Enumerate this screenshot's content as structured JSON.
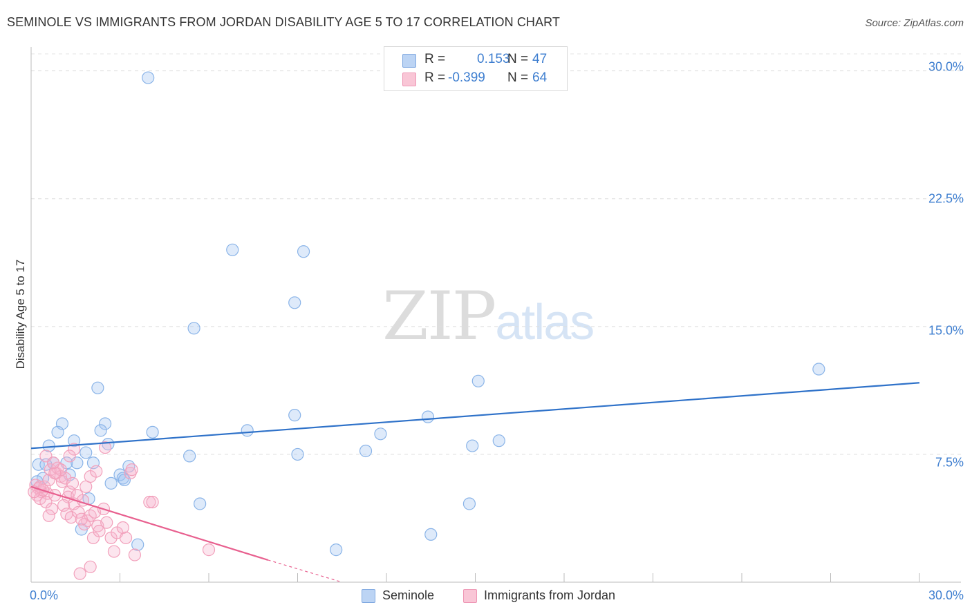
{
  "chart_data": {
    "type": "scatter",
    "title": "SEMINOLE VS IMMIGRANTS FROM JORDAN DISABILITY AGE 5 TO 17 CORRELATION CHART",
    "source": "Source: ZipAtlas.com",
    "xlabel": "",
    "ylabel": "Disability Age 5 to 17",
    "xlim": [
      0,
      30
    ],
    "ylim": [
      0,
      31
    ],
    "x_tick_labels": [
      "0.0%",
      "30.0%"
    ],
    "y_tick_labels": [
      {
        "value": 30,
        "label": "30.0%"
      },
      {
        "value": 22.5,
        "label": "22.5%"
      },
      {
        "value": 15,
        "label": "15.0%"
      },
      {
        "value": 7.5,
        "label": "7.5%"
      }
    ],
    "x_minor_ticks": [
      3,
      6,
      9,
      12,
      15,
      18,
      21,
      24,
      27,
      30
    ],
    "watermark": {
      "zip": "ZIP",
      "atlas": "atlas"
    },
    "stats": [
      {
        "series": "Seminole",
        "r_label": "R =",
        "r_value": "0.153",
        "n_label": "N =",
        "n_value": "47"
      },
      {
        "series": "Immigrants from Jordan",
        "r_label": "R =",
        "r_value": "-0.399",
        "n_label": "N =",
        "n_value": "64"
      }
    ],
    "series": [
      {
        "name": "Seminole",
        "color": "#8ab4e8",
        "fill": "rgba(160,196,240,0.35)",
        "line_color": "#2f72c9",
        "trend": {
          "x0": 0,
          "y0": 7.85,
          "x1": 30,
          "y1": 11.7
        },
        "points": [
          [
            3.95,
            29.6
          ],
          [
            6.8,
            19.5
          ],
          [
            9.2,
            19.4
          ],
          [
            8.9,
            16.4
          ],
          [
            5.5,
            14.9
          ],
          [
            26.6,
            12.5
          ],
          [
            15.1,
            11.8
          ],
          [
            2.25,
            11.4
          ],
          [
            8.9,
            9.8
          ],
          [
            13.4,
            9.7
          ],
          [
            1.05,
            9.3
          ],
          [
            2.5,
            9.3
          ],
          [
            2.35,
            8.9
          ],
          [
            0.9,
            8.8
          ],
          [
            4.1,
            8.8
          ],
          [
            7.3,
            8.9
          ],
          [
            11.8,
            8.7
          ],
          [
            1.45,
            8.3
          ],
          [
            0.6,
            8.0
          ],
          [
            2.6,
            8.1
          ],
          [
            15.8,
            8.3
          ],
          [
            14.9,
            8.0
          ],
          [
            1.85,
            7.6
          ],
          [
            5.35,
            7.4
          ],
          [
            9.0,
            7.5
          ],
          [
            11.3,
            7.7
          ],
          [
            0.25,
            6.9
          ],
          [
            0.75,
            7.0
          ],
          [
            1.2,
            7.0
          ],
          [
            1.55,
            7.0
          ],
          [
            2.1,
            7.0
          ],
          [
            0.5,
            6.9
          ],
          [
            1.3,
            6.3
          ],
          [
            0.4,
            6.1
          ],
          [
            3.3,
            6.8
          ],
          [
            3.0,
            6.3
          ],
          [
            3.1,
            6.1
          ],
          [
            3.15,
            6.0
          ],
          [
            2.7,
            5.8
          ],
          [
            0.2,
            5.9
          ],
          [
            5.7,
            4.6
          ],
          [
            14.8,
            4.6
          ],
          [
            1.95,
            4.9
          ],
          [
            1.7,
            3.1
          ],
          [
            3.6,
            2.2
          ],
          [
            13.5,
            2.8
          ],
          [
            10.3,
            1.9
          ]
        ]
      },
      {
        "name": "Immigrants from Jordan",
        "color": "#f2a0bb",
        "fill": "rgba(245,180,205,0.35)",
        "line_color": "#e8608f",
        "trend": {
          "x0": 0,
          "y0": 5.6,
          "x1": 8.0,
          "y1": 1.3
        },
        "trend_dashed": {
          "x0": 8.0,
          "y0": 1.3,
          "x1": 10.5,
          "y1": 0.0
        },
        "points": [
          [
            0.15,
            5.7
          ],
          [
            0.25,
            5.5
          ],
          [
            0.35,
            5.3
          ],
          [
            0.2,
            5.1
          ],
          [
            0.45,
            5.6
          ],
          [
            0.55,
            5.2
          ],
          [
            0.3,
            4.9
          ],
          [
            0.4,
            5.4
          ],
          [
            0.6,
            6.0
          ],
          [
            0.5,
            4.7
          ],
          [
            0.7,
            4.3
          ],
          [
            0.8,
            5.1
          ],
          [
            0.65,
            6.6
          ],
          [
            0.5,
            7.4
          ],
          [
            0.85,
            6.4
          ],
          [
            0.9,
            6.7
          ],
          [
            1.0,
            6.2
          ],
          [
            1.05,
            5.9
          ],
          [
            1.15,
            6.1
          ],
          [
            1.25,
            5.0
          ],
          [
            1.3,
            5.3
          ],
          [
            1.1,
            4.5
          ],
          [
            1.2,
            4.0
          ],
          [
            1.35,
            3.8
          ],
          [
            1.45,
            4.6
          ],
          [
            1.4,
            5.8
          ],
          [
            1.55,
            5.1
          ],
          [
            1.6,
            4.1
          ],
          [
            1.75,
            4.8
          ],
          [
            1.85,
            5.6
          ],
          [
            1.9,
            3.6
          ],
          [
            2.0,
            3.9
          ],
          [
            1.8,
            3.4
          ],
          [
            2.15,
            4.1
          ],
          [
            2.25,
            3.3
          ],
          [
            2.1,
            2.6
          ],
          [
            2.3,
            3.0
          ],
          [
            1.45,
            7.8
          ],
          [
            1.3,
            7.4
          ],
          [
            2.5,
            7.9
          ],
          [
            2.0,
            6.2
          ],
          [
            2.2,
            6.5
          ],
          [
            2.45,
            4.3
          ],
          [
            2.55,
            3.5
          ],
          [
            2.7,
            2.6
          ],
          [
            2.9,
            2.9
          ],
          [
            3.1,
            3.2
          ],
          [
            3.2,
            2.6
          ],
          [
            3.35,
            6.4
          ],
          [
            3.4,
            6.6
          ],
          [
            3.5,
            1.6
          ],
          [
            2.8,
            1.8
          ],
          [
            4.0,
            4.7
          ],
          [
            4.1,
            4.7
          ],
          [
            6.0,
            1.9
          ],
          [
            1.65,
            0.5
          ],
          [
            2.0,
            0.9
          ],
          [
            1.0,
            6.6
          ],
          [
            0.8,
            6.4
          ],
          [
            0.75,
            7.0
          ],
          [
            0.3,
            5.6
          ],
          [
            0.1,
            5.3
          ],
          [
            0.6,
            3.9
          ],
          [
            1.7,
            3.7
          ]
        ]
      }
    ]
  }
}
